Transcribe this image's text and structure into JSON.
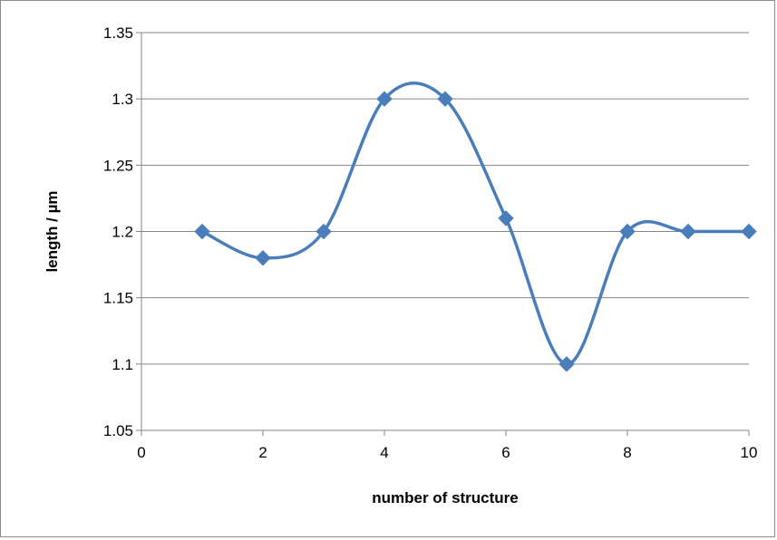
{
  "chart_data": {
    "type": "line",
    "title": "",
    "xlabel": "number of structure",
    "ylabel": "length / µm",
    "xlim": [
      0,
      10
    ],
    "ylim": [
      1.05,
      1.35
    ],
    "x_ticks": [
      "0",
      "2",
      "4",
      "6",
      "8",
      "10"
    ],
    "y_ticks": [
      "1.05",
      "1.1",
      "1.15",
      "1.2",
      "1.25",
      "1.3",
      "1.35"
    ],
    "grid": "horizontal",
    "legend": "none",
    "smoothed": true,
    "marker": "diamond",
    "series": [
      {
        "color": "#4a7ebb",
        "x": [
          1,
          2,
          3,
          4,
          5,
          6,
          7,
          8,
          9,
          10
        ],
        "y": [
          1.2,
          1.18,
          1.2,
          1.3,
          1.3,
          1.21,
          1.1,
          1.2,
          1.2,
          1.2
        ]
      }
    ]
  }
}
